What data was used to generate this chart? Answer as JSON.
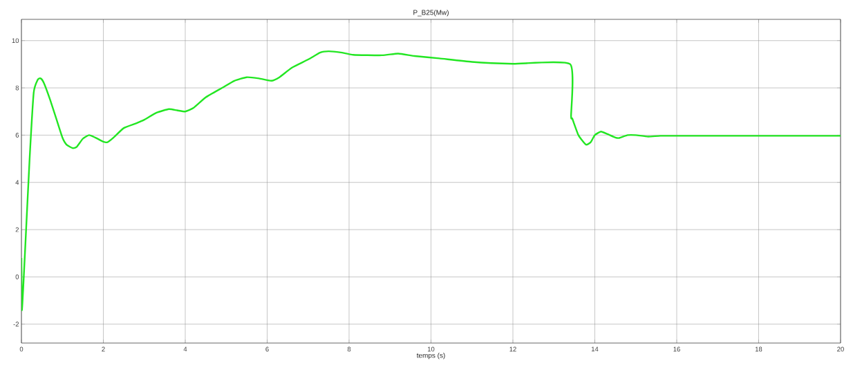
{
  "chart_data": {
    "type": "line",
    "title": "P_B25(Mw)",
    "xlabel": "temps (s)",
    "xlim": [
      0,
      20
    ],
    "ylim": [
      -2.8,
      10.9
    ],
    "xticks": [
      0,
      2,
      4,
      6,
      8,
      10,
      12,
      14,
      16,
      18,
      20
    ],
    "yticks": [
      -2,
      0,
      2,
      4,
      6,
      8,
      10
    ],
    "grid": true,
    "marker": "none",
    "line_style": "solid",
    "series": [
      {
        "color": "#22e622",
        "x": [
          0,
          0.01,
          0.04,
          0.1,
          0.2,
          0.3,
          0.4,
          0.47,
          0.55,
          0.7,
          0.85,
          1.0,
          1.1,
          1.25,
          1.35,
          1.5,
          1.65,
          1.8,
          2.0,
          2.1,
          2.25,
          2.5,
          2.8,
          3.0,
          3.3,
          3.6,
          3.8,
          4.0,
          4.2,
          4.5,
          4.9,
          5.2,
          5.5,
          5.8,
          6.1,
          6.3,
          6.6,
          7.0,
          7.3,
          7.5,
          7.8,
          8.1,
          8.8,
          9.2,
          9.6,
          10.2,
          11,
          12,
          13.4,
          13.42,
          13.45,
          13.6,
          13.78,
          13.9,
          14.0,
          14.15,
          14.3,
          14.5,
          14.6,
          14.8,
          15.0,
          15.3,
          15.6,
          16,
          20
        ],
        "values": [
          0.8,
          -1.4,
          -0.6,
          1.5,
          5,
          7.8,
          8.35,
          8.4,
          8.2,
          7.5,
          6.7,
          5.9,
          5.6,
          5.45,
          5.5,
          5.85,
          6.0,
          5.9,
          5.72,
          5.7,
          5.9,
          6.3,
          6.5,
          6.65,
          6.95,
          7.1,
          7.05,
          7.0,
          7.15,
          7.6,
          8.0,
          8.3,
          8.45,
          8.4,
          8.3,
          8.45,
          8.85,
          9.2,
          9.5,
          9.55,
          9.5,
          9.4,
          9.38,
          9.45,
          9.35,
          9.25,
          9.1,
          9.02,
          9.0,
          6.8,
          6.7,
          6.0,
          5.6,
          5.7,
          6.0,
          6.15,
          6.05,
          5.9,
          5.88,
          6.0,
          6.0,
          5.94,
          5.97,
          5.97,
          5.97
        ]
      }
    ]
  }
}
